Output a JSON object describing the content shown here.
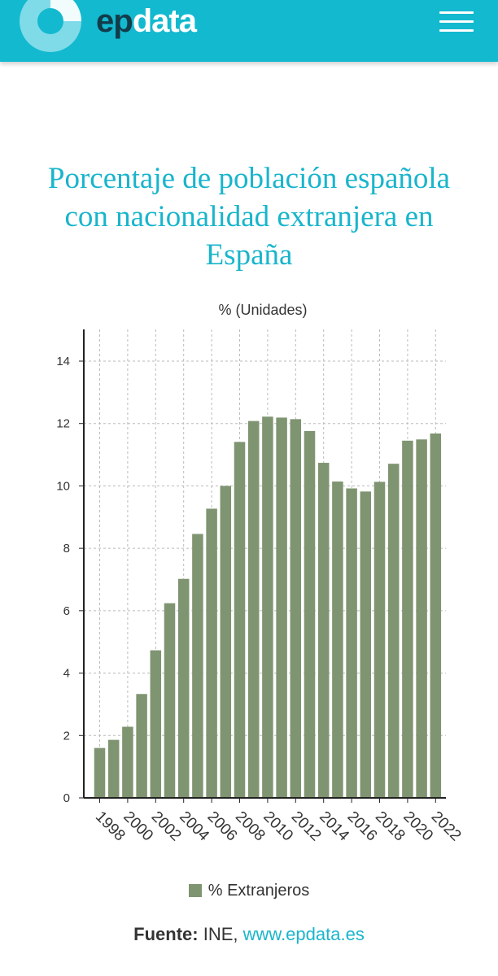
{
  "header": {
    "brand_ep": "ep",
    "brand_data": "data",
    "logo_icon": "epdata-logo-icon",
    "menu_icon": "hamburger-menu-icon",
    "bg_color": "#13b9cf"
  },
  "chart_title": "Porcentaje de población española con nacionalidad extranjera en España",
  "legend_label": "% Extranjeros",
  "footer": {
    "source_label": "Fuente:",
    "source_text": " INE, ",
    "source_link": "www.epdata.es"
  },
  "chart_data": {
    "type": "bar",
    "title": "Porcentaje de población española con nacionalidad extranjera en España",
    "ylabel": "% (Unidades)",
    "xlabel": "",
    "ylim": [
      0,
      15
    ],
    "yticks": [
      0,
      2,
      4,
      6,
      8,
      10,
      12,
      14
    ],
    "x_tick_labels": [
      "1998",
      "2000",
      "2002",
      "2004",
      "2006",
      "2008",
      "2010",
      "2012",
      "2014",
      "2016",
      "2018",
      "2020",
      "2022"
    ],
    "categories": [
      "1998",
      "1999",
      "2000",
      "2001",
      "2002",
      "2003",
      "2004",
      "2005",
      "2006",
      "2007",
      "2008",
      "2009",
      "2010",
      "2011",
      "2012",
      "2013",
      "2014",
      "2015",
      "2016",
      "2017",
      "2018",
      "2019",
      "2020",
      "2021",
      "2022"
    ],
    "series": [
      {
        "name": "% Extranjeros",
        "color": "#7f9470",
        "values": [
          1.6,
          1.86,
          2.28,
          3.33,
          4.73,
          6.24,
          7.02,
          8.46,
          9.27,
          10.0,
          11.41,
          12.08,
          12.22,
          12.19,
          12.14,
          11.76,
          10.74,
          10.14,
          9.92,
          9.82,
          10.13,
          10.71,
          11.45,
          11.49,
          11.68
        ]
      }
    ],
    "grid": true,
    "legend_position": "bottom"
  }
}
